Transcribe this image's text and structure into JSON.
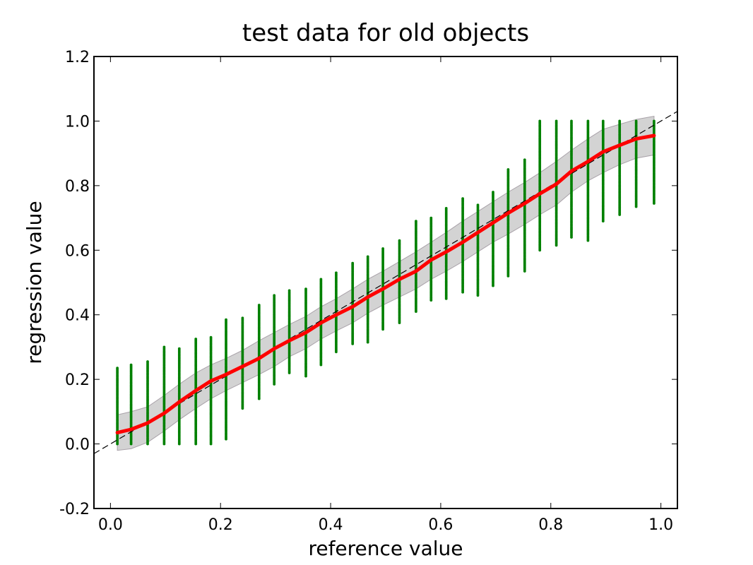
{
  "chart_data": {
    "type": "scatter",
    "title": "test data for old objects",
    "xlabel": "reference value",
    "ylabel": "regression value",
    "xlim": [
      -0.03,
      1.03
    ],
    "ylim": [
      -0.2,
      1.2
    ],
    "xticks": [
      0.0,
      0.2,
      0.4,
      0.6,
      0.8,
      1.0
    ],
    "xtick_labels": [
      "0.0",
      "0.2",
      "0.4",
      "0.6",
      "0.8",
      "1.0"
    ],
    "yticks": [
      -0.2,
      0.0,
      0.2,
      0.4,
      0.6,
      0.8,
      1.0,
      1.2
    ],
    "ytick_labels": [
      "-0.2",
      "0.0",
      "0.2",
      "0.4",
      "0.6",
      "0.8",
      "1.0",
      "1.2"
    ],
    "grid": false,
    "colors": {
      "points": "#008000",
      "mean_line": "#ff0000",
      "band_fill": "#d3d3d3",
      "band_edge": "#a9a2a9",
      "identity_line": "#000000"
    },
    "identity_line": {
      "x": [
        -0.03,
        1.03
      ],
      "y": [
        -0.03,
        1.03
      ],
      "style": "dashed"
    },
    "mean_series": {
      "x": [
        0.0125,
        0.0375,
        0.0675,
        0.0975,
        0.125,
        0.155,
        0.1825,
        0.21,
        0.24,
        0.27,
        0.2975,
        0.325,
        0.355,
        0.3825,
        0.41,
        0.44,
        0.4675,
        0.495,
        0.525,
        0.555,
        0.5825,
        0.61,
        0.64,
        0.6675,
        0.695,
        0.7225,
        0.7525,
        0.78,
        0.81,
        0.8375,
        0.8675,
        0.895,
        0.925,
        0.955,
        0.9875
      ],
      "y": [
        0.035,
        0.045,
        0.065,
        0.095,
        0.13,
        0.165,
        0.195,
        0.215,
        0.24,
        0.265,
        0.295,
        0.32,
        0.345,
        0.375,
        0.4,
        0.425,
        0.455,
        0.48,
        0.51,
        0.535,
        0.57,
        0.595,
        0.625,
        0.655,
        0.685,
        0.715,
        0.745,
        0.775,
        0.805,
        0.845,
        0.875,
        0.905,
        0.925,
        0.945,
        0.955
      ]
    },
    "std_band": {
      "upper": [
        0.09,
        0.1,
        0.115,
        0.15,
        0.185,
        0.22,
        0.245,
        0.265,
        0.29,
        0.32,
        0.345,
        0.37,
        0.395,
        0.425,
        0.45,
        0.48,
        0.51,
        0.535,
        0.565,
        0.595,
        0.625,
        0.655,
        0.69,
        0.72,
        0.75,
        0.78,
        0.81,
        0.84,
        0.875,
        0.91,
        0.945,
        0.975,
        0.99,
        1.005,
        1.015
      ],
      "lower": [
        -0.02,
        -0.015,
        0.005,
        0.04,
        0.075,
        0.11,
        0.14,
        0.165,
        0.19,
        0.215,
        0.24,
        0.27,
        0.295,
        0.325,
        0.35,
        0.375,
        0.405,
        0.43,
        0.455,
        0.48,
        0.51,
        0.535,
        0.565,
        0.595,
        0.625,
        0.65,
        0.68,
        0.71,
        0.74,
        0.78,
        0.815,
        0.84,
        0.865,
        0.885,
        0.895
      ]
    },
    "point_columns": {
      "x": [
        0.0125,
        0.0375,
        0.0675,
        0.0975,
        0.125,
        0.155,
        0.1825,
        0.21,
        0.24,
        0.27,
        0.2975,
        0.325,
        0.355,
        0.3825,
        0.41,
        0.44,
        0.4675,
        0.495,
        0.525,
        0.555,
        0.5825,
        0.61,
        0.64,
        0.6675,
        0.695,
        0.7225,
        0.7525,
        0.78,
        0.81,
        0.8375,
        0.8675,
        0.895,
        0.925,
        0.955,
        0.9875
      ],
      "min": [
        0.0,
        0.0,
        0.0,
        0.0,
        0.0,
        0.0,
        0.0,
        0.015,
        0.11,
        0.14,
        0.185,
        0.22,
        0.21,
        0.245,
        0.285,
        0.31,
        0.315,
        0.355,
        0.375,
        0.41,
        0.445,
        0.45,
        0.47,
        0.46,
        0.49,
        0.52,
        0.535,
        0.6,
        0.615,
        0.64,
        0.63,
        0.69,
        0.71,
        0.735,
        0.745
      ],
      "max": [
        0.235,
        0.245,
        0.255,
        0.3,
        0.295,
        0.325,
        0.33,
        0.385,
        0.39,
        0.43,
        0.46,
        0.475,
        0.48,
        0.51,
        0.53,
        0.56,
        0.58,
        0.605,
        0.63,
        0.69,
        0.7,
        0.73,
        0.76,
        0.74,
        0.78,
        0.85,
        0.88,
        1.0,
        1.0,
        1.0,
        1.0,
        1.0,
        1.0,
        1.0,
        1.0
      ]
    }
  }
}
